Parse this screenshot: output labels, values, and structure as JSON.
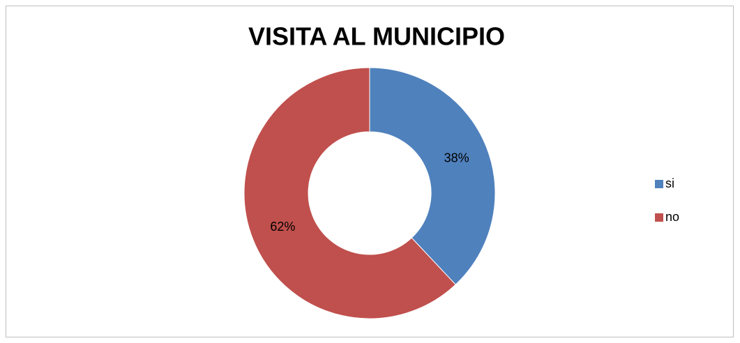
{
  "chart_data": {
    "type": "donut",
    "title": "VISITA AL MUNICIPIO",
    "categories": [
      "si",
      "no"
    ],
    "values": [
      38,
      62
    ],
    "value_labels": [
      "38%",
      "62%"
    ],
    "colors": [
      "#4f81bd",
      "#c0504d"
    ],
    "legend": "right"
  }
}
